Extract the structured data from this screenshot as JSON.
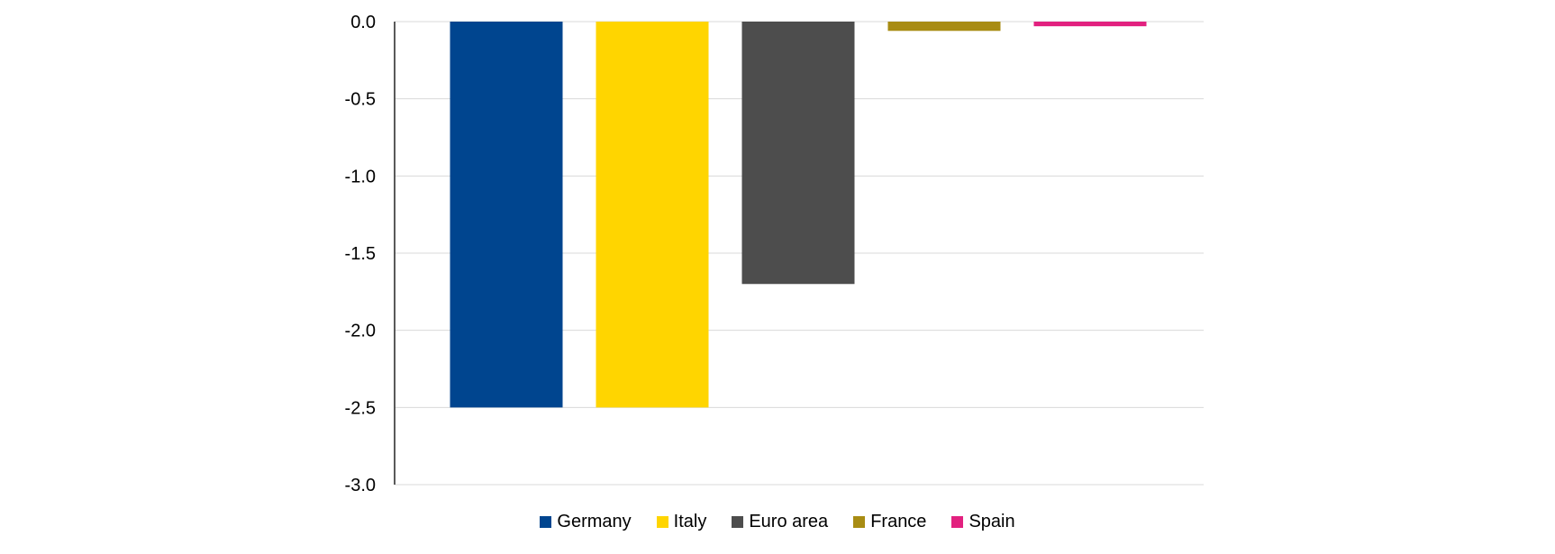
{
  "chart_data": {
    "type": "bar",
    "title": "",
    "xlabel": "",
    "ylabel": "",
    "ylim": [
      -3.0,
      0.0
    ],
    "y_ticks": [
      "0.0",
      "-0.5",
      "-1.0",
      "-1.5",
      "-2.0",
      "-2.5",
      "-3.0"
    ],
    "grid": true,
    "legend_position": "bottom",
    "series": [
      {
        "name": "Germany",
        "value": -2.5,
        "color": "#00458F"
      },
      {
        "name": "Italy",
        "value": -2.5,
        "color": "#FFD500"
      },
      {
        "name": "Euro area",
        "value": -1.7,
        "color": "#4D4D4D"
      },
      {
        "name": "France",
        "value": -0.06,
        "color": "#A88C13"
      },
      {
        "name": "Spain",
        "value": -0.03,
        "color": "#E2217F"
      }
    ]
  }
}
